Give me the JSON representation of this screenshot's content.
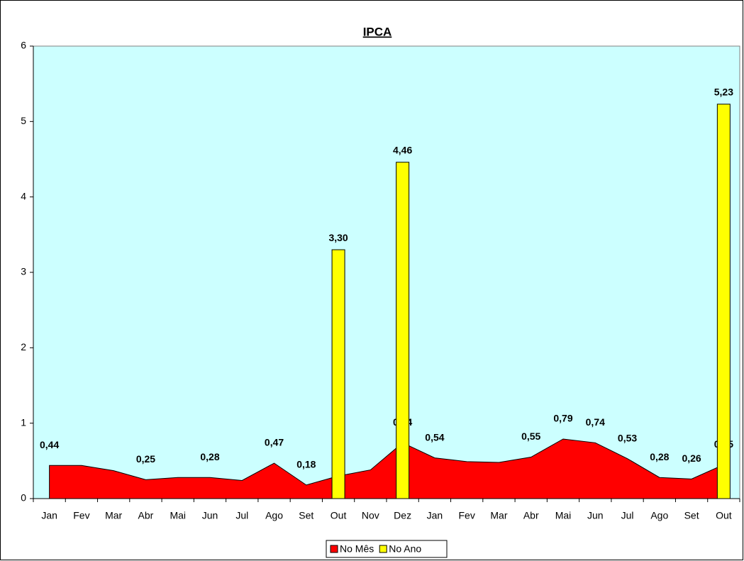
{
  "chart_data": {
    "type": "area_bar",
    "title": "IPCA",
    "categories": [
      "Jan",
      "Fev",
      "Mar",
      "Abr",
      "Mai",
      "Jun",
      "Jul",
      "Ago",
      "Set",
      "Out",
      "Nov",
      "Dez",
      "Jan",
      "Fev",
      "Mar",
      "Abr",
      "Mai",
      "Jun",
      "Jul",
      "Ago",
      "Set",
      "Out"
    ],
    "series": [
      {
        "name": "No Mês",
        "color": "#ff0000",
        "kind": "area",
        "values": [
          0.44,
          0.44,
          0.37,
          0.25,
          0.28,
          0.28,
          0.24,
          0.47,
          0.18,
          0.3,
          0.38,
          0.74,
          0.54,
          0.49,
          0.48,
          0.55,
          0.79,
          0.74,
          0.53,
          0.28,
          0.26,
          0.45
        ],
        "value_labels": [
          "0,44",
          null,
          null,
          "0,25",
          null,
          "0,28",
          null,
          "0,47",
          "0,18",
          null,
          null,
          "0,74",
          "0,54",
          null,
          null,
          "0,55",
          "0,79",
          "0,74",
          "0,53",
          "0,28",
          "0,26",
          "0,45"
        ]
      },
      {
        "name": "No Ano",
        "color": "#ffff00",
        "kind": "bar",
        "values": [
          null,
          null,
          null,
          null,
          null,
          null,
          null,
          null,
          null,
          3.3,
          null,
          4.46,
          null,
          null,
          null,
          null,
          null,
          null,
          null,
          null,
          null,
          5.23
        ],
        "value_labels": [
          null,
          null,
          null,
          null,
          null,
          null,
          null,
          null,
          null,
          "3,30",
          null,
          "4,46",
          null,
          null,
          null,
          null,
          null,
          null,
          null,
          null,
          null,
          "5,23"
        ]
      }
    ],
    "ylim": [
      0,
      6
    ],
    "yticks": [
      0,
      1,
      2,
      3,
      4,
      5,
      6
    ],
    "background": "#ccffff",
    "legend": "bottom"
  }
}
